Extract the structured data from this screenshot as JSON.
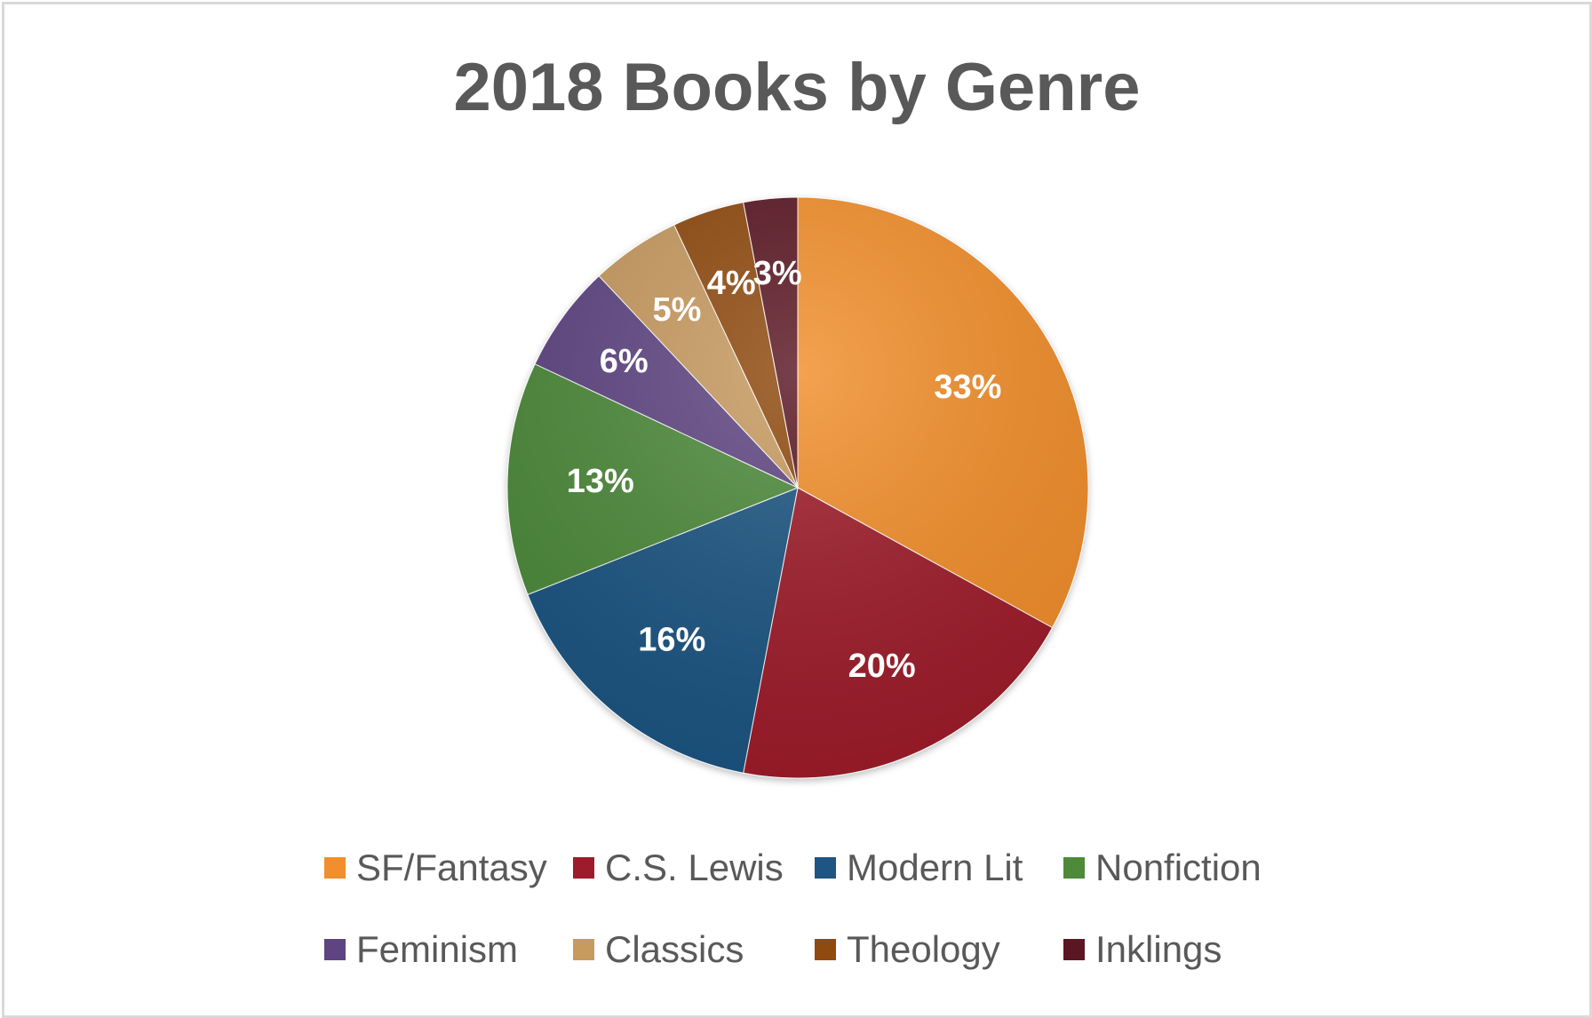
{
  "chart_data": {
    "type": "pie",
    "title": "2018 Books by Genre",
    "categories": [
      "SF/Fantasy",
      "C.S. Lewis",
      "Modern Lit",
      "Nonfiction",
      "Feminism",
      "Classics",
      "Theology",
      "Inklings"
    ],
    "values": [
      33,
      20,
      16,
      13,
      6,
      5,
      4,
      3
    ],
    "labels": [
      "33%",
      "20%",
      "16%",
      "13%",
      "6%",
      "5%",
      "4%",
      "3%"
    ],
    "colors": [
      "#f28e2b",
      "#9e1b2b",
      "#1f5582",
      "#4d8a3a",
      "#5e4582",
      "#c79a5e",
      "#8f4a10",
      "#5a1622"
    ],
    "legend_position": "bottom",
    "start_angle_deg": 0,
    "direction": "clockwise"
  }
}
